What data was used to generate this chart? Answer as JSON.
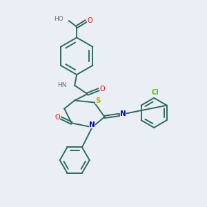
{
  "background_color": "#eaeff5",
  "bond_color": "#2d6b5e",
  "atom_colors": {
    "O": "#ff0000",
    "N": "#0000cc",
    "S": "#ccaa00",
    "Cl": "#44cc00",
    "C": "#2d6b5e",
    "H": "#707070"
  },
  "figsize": [
    3.0,
    3.0
  ],
  "dpi": 100
}
